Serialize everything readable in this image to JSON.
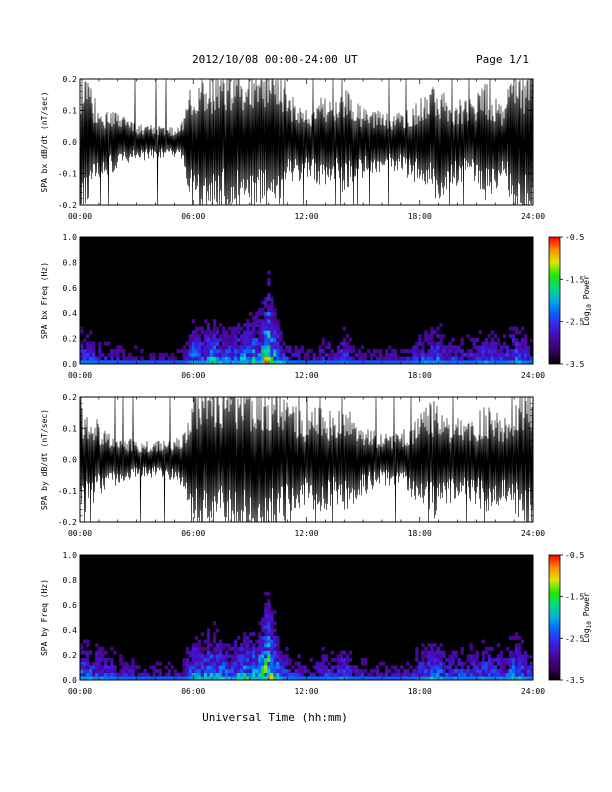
{
  "header": {
    "title": "2012/10/08   00:00-24:00 UT",
    "page": "Page 1/1"
  },
  "xaxis_label": "Universal Time (hh:mm)",
  "colors": {
    "trace": "#000000",
    "spec_bg": "#000000"
  },
  "chart_data": [
    {
      "type": "line",
      "title": "",
      "ylabel": "SPA bx dB/dt (nT/sec)",
      "xlabel": "",
      "ylim": [
        -0.2,
        0.2
      ],
      "yticks": [
        "-0.2",
        "-0.1",
        "0.0",
        "0.1",
        "0.2"
      ],
      "xticks": [
        "00:00",
        "06:00",
        "12:00",
        "18:00",
        "24:00"
      ],
      "xlim_hours": [
        0,
        24
      ],
      "series": [
        {
          "x_hours": [
            0,
            0.5,
            1,
            1.5,
            2,
            2.5,
            3,
            3.5,
            4,
            4.5,
            5,
            5.5,
            6,
            6.5,
            7,
            7.5,
            8,
            8.5,
            9,
            9.5,
            10,
            10.5,
            11,
            11.5,
            12,
            12.5,
            13,
            13.5,
            14,
            14.5,
            15,
            15.5,
            16,
            16.5,
            17,
            17.5,
            18,
            18.5,
            19,
            19.5,
            20,
            20.5,
            21,
            21.5,
            22,
            22.5,
            23,
            23.5,
            24
          ],
          "amplitude": [
            0.2,
            0.15,
            0.1,
            0.09,
            0.08,
            0.06,
            0.05,
            0.05,
            0.05,
            0.04,
            0.04,
            0.06,
            0.2,
            0.2,
            0.2,
            0.18,
            0.2,
            0.2,
            0.2,
            0.18,
            0.2,
            0.2,
            0.12,
            0.12,
            0.09,
            0.12,
            0.12,
            0.1,
            0.15,
            0.11,
            0.1,
            0.09,
            0.08,
            0.08,
            0.08,
            0.1,
            0.12,
            0.14,
            0.16,
            0.12,
            0.12,
            0.11,
            0.13,
            0.16,
            0.13,
            0.11,
            0.2,
            0.2,
            0.2
          ]
        }
      ]
    },
    {
      "type": "heatmap",
      "title": "",
      "ylabel": "SPA bx Freq (Hz)",
      "xlabel": "",
      "ylim": [
        0.0,
        1.0
      ],
      "yticks": [
        "0.0",
        "0.2",
        "0.4",
        "0.6",
        "0.8",
        "1.0"
      ],
      "xticks": [
        "00:00",
        "06:00",
        "12:00",
        "18:00",
        "24:00"
      ],
      "colorbar": {
        "label": "Log10 Power",
        "ticks": [
          "-0.5",
          "-1.5",
          "-2.5",
          "-3.5"
        ],
        "range": [
          -3.5,
          -0.5
        ]
      },
      "activity_hours": [
        0,
        0.5,
        1,
        1.5,
        2,
        2.5,
        3,
        3.5,
        4,
        4.5,
        5,
        5.5,
        6,
        6.5,
        7,
        7.5,
        8,
        8.5,
        9,
        9.5,
        10,
        10.5,
        11,
        11.5,
        12,
        12.5,
        13,
        13.5,
        14,
        14.5,
        15,
        15.5,
        16,
        16.5,
        17,
        17.5,
        18,
        18.5,
        19,
        19.5,
        20,
        20.5,
        21,
        21.5,
        22,
        22.5,
        23,
        23.5,
        24
      ],
      "activity_level": [
        0.5,
        0.45,
        0.4,
        0.35,
        0.35,
        0.3,
        0.3,
        0.25,
        0.25,
        0.25,
        0.25,
        0.3,
        0.6,
        0.55,
        0.7,
        0.55,
        0.55,
        0.6,
        0.65,
        0.7,
        1.0,
        0.6,
        0.4,
        0.35,
        0.3,
        0.35,
        0.4,
        0.35,
        0.5,
        0.3,
        0.3,
        0.3,
        0.3,
        0.3,
        0.3,
        0.35,
        0.45,
        0.5,
        0.55,
        0.4,
        0.45,
        0.4,
        0.45,
        0.5,
        0.45,
        0.4,
        0.6,
        0.5,
        0.4
      ]
    },
    {
      "type": "line",
      "title": "",
      "ylabel": "SPA by dB/dt (nT/sec)",
      "xlabel": "",
      "ylim": [
        -0.2,
        0.2
      ],
      "yticks": [
        "-0.2",
        "-0.1",
        "0.0",
        "0.1",
        "0.2"
      ],
      "xticks": [
        "00:00",
        "06:00",
        "12:00",
        "18:00",
        "24:00"
      ],
      "xlim_hours": [
        0,
        24
      ],
      "series": [
        {
          "x_hours": [
            0,
            0.5,
            1,
            1.5,
            2,
            2.5,
            3,
            3.5,
            4,
            4.5,
            5,
            5.5,
            6,
            6.5,
            7,
            7.5,
            8,
            8.5,
            9,
            9.5,
            10,
            10.5,
            11,
            11.5,
            12,
            12.5,
            13,
            13.5,
            14,
            14.5,
            15,
            15.5,
            16,
            16.5,
            17,
            17.5,
            18,
            18.5,
            19,
            19.5,
            20,
            20.5,
            21,
            21.5,
            22,
            22.5,
            23,
            23.5,
            24
          ],
          "amplitude": [
            0.15,
            0.14,
            0.1,
            0.08,
            0.07,
            0.06,
            0.05,
            0.05,
            0.05,
            0.05,
            0.06,
            0.08,
            0.2,
            0.2,
            0.2,
            0.18,
            0.2,
            0.2,
            0.2,
            0.19,
            0.2,
            0.2,
            0.15,
            0.14,
            0.12,
            0.14,
            0.14,
            0.12,
            0.15,
            0.12,
            0.1,
            0.08,
            0.07,
            0.07,
            0.08,
            0.1,
            0.12,
            0.15,
            0.17,
            0.12,
            0.12,
            0.11,
            0.12,
            0.15,
            0.13,
            0.11,
            0.14,
            0.2,
            0.2
          ]
        }
      ]
    },
    {
      "type": "heatmap",
      "title": "",
      "ylabel": "SPA by Freq (Hz)",
      "xlabel": "",
      "ylim": [
        0.0,
        1.0
      ],
      "yticks": [
        "0.0",
        "0.2",
        "0.4",
        "0.6",
        "0.8",
        "1.0"
      ],
      "xticks": [
        "00:00",
        "06:00",
        "12:00",
        "18:00",
        "24:00"
      ],
      "colorbar": {
        "label": "Log10 Power",
        "ticks": [
          "-0.5",
          "-1.5",
          "-2.5",
          "-3.5"
        ],
        "range": [
          -3.5,
          -0.5
        ]
      },
      "activity_hours": [
        0,
        0.5,
        1,
        1.5,
        2,
        2.5,
        3,
        3.5,
        4,
        4.5,
        5,
        5.5,
        6,
        6.5,
        7,
        7.5,
        8,
        8.5,
        9,
        9.5,
        10,
        10.5,
        11,
        11.5,
        12,
        12.5,
        13,
        13.5,
        14,
        14.5,
        15,
        15.5,
        16,
        16.5,
        17,
        17.5,
        18,
        18.5,
        19,
        19.5,
        20,
        20.5,
        21,
        21.5,
        22,
        22.5,
        23,
        23.5,
        24
      ],
      "activity_level": [
        0.6,
        0.55,
        0.5,
        0.45,
        0.4,
        0.35,
        0.35,
        0.3,
        0.3,
        0.3,
        0.3,
        0.35,
        0.65,
        0.6,
        0.75,
        0.6,
        0.6,
        0.65,
        0.7,
        0.75,
        1.0,
        0.65,
        0.45,
        0.4,
        0.35,
        0.4,
        0.45,
        0.4,
        0.55,
        0.35,
        0.35,
        0.3,
        0.3,
        0.3,
        0.3,
        0.35,
        0.5,
        0.55,
        0.6,
        0.45,
        0.5,
        0.45,
        0.5,
        0.55,
        0.5,
        0.45,
        0.65,
        0.55,
        0.45
      ]
    }
  ]
}
